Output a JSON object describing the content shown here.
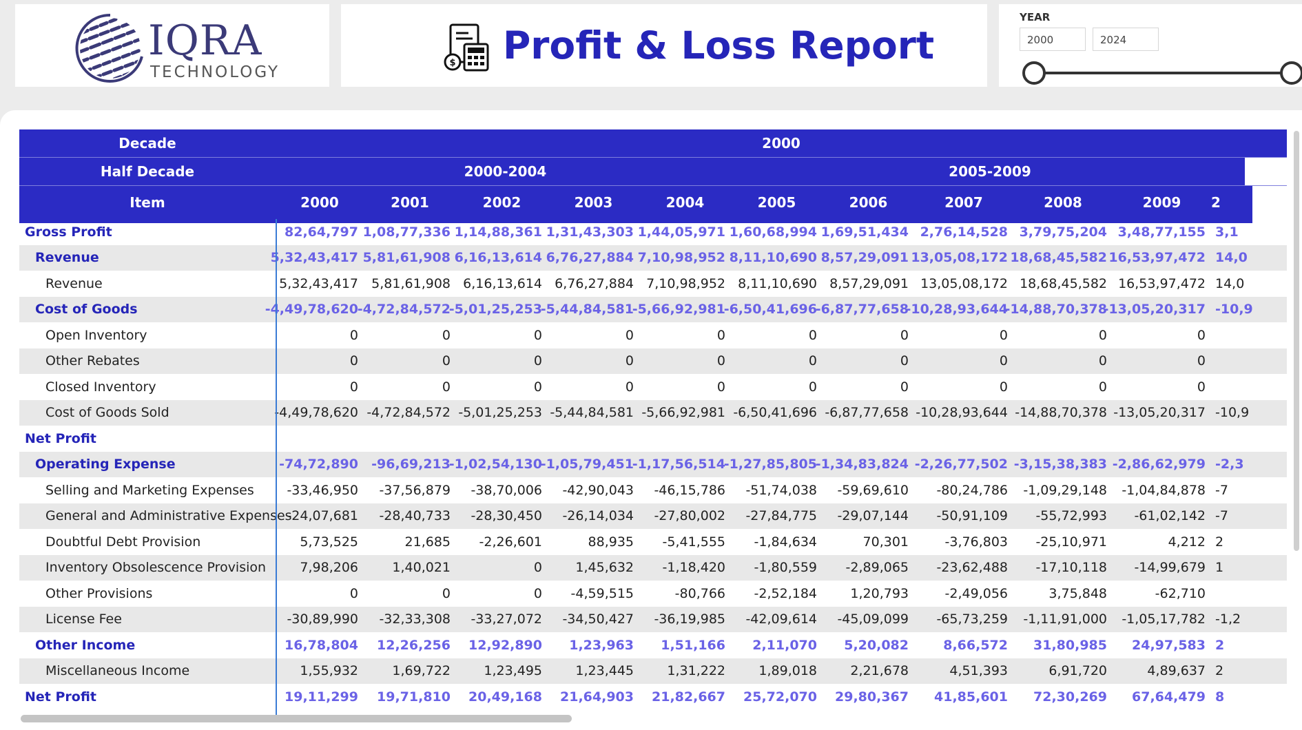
{
  "logo": {
    "name": "IQRA",
    "subtitle": "TECHNOLOGY"
  },
  "report": {
    "title": "Profit & Loss Report"
  },
  "slicer": {
    "label": "YEAR",
    "start": "2000",
    "end": "2024"
  },
  "matrix": {
    "row_headers": {
      "decade": "Decade",
      "half_decade": "Half Decade",
      "item": "Item"
    },
    "decade_value": "2000",
    "half_decades": [
      "2000-2004",
      "2005-2009"
    ],
    "years": [
      "2000",
      "2001",
      "2002",
      "2003",
      "2004",
      "2005",
      "2006",
      "2007",
      "2008",
      "2009",
      "2"
    ],
    "rows": [
      {
        "label": "Gross Profit",
        "level": 0,
        "values": [
          "82,64,797",
          "1,08,77,336",
          "1,14,88,361",
          "1,31,43,303",
          "1,44,05,971",
          "1,60,68,994",
          "1,69,51,434",
          "2,76,14,528",
          "3,79,75,204",
          "3,48,77,155",
          "3,1"
        ]
      },
      {
        "label": "Revenue",
        "level": 1,
        "values": [
          "5,32,43,417",
          "5,81,61,908",
          "6,16,13,614",
          "6,76,27,884",
          "7,10,98,952",
          "8,11,10,690",
          "8,57,29,091",
          "13,05,08,172",
          "18,68,45,582",
          "16,53,97,472",
          "14,0"
        ]
      },
      {
        "label": "Revenue",
        "level": 2,
        "values": [
          "5,32,43,417",
          "5,81,61,908",
          "6,16,13,614",
          "6,76,27,884",
          "7,10,98,952",
          "8,11,10,690",
          "8,57,29,091",
          "13,05,08,172",
          "18,68,45,582",
          "16,53,97,472",
          "14,0"
        ]
      },
      {
        "label": "Cost of Goods",
        "level": 1,
        "values": [
          "-4,49,78,620",
          "-4,72,84,572",
          "-5,01,25,253",
          "-5,44,84,581",
          "-5,66,92,981",
          "-6,50,41,696",
          "-6,87,77,658",
          "-10,28,93,644",
          "-14,88,70,378",
          "-13,05,20,317",
          "-10,9"
        ]
      },
      {
        "label": "Open Inventory",
        "level": 2,
        "values": [
          "0",
          "0",
          "0",
          "0",
          "0",
          "0",
          "0",
          "0",
          "0",
          "0",
          ""
        ]
      },
      {
        "label": "Other Rebates",
        "level": 2,
        "values": [
          "0",
          "0",
          "0",
          "0",
          "0",
          "0",
          "0",
          "0",
          "0",
          "0",
          ""
        ]
      },
      {
        "label": "Closed Inventory",
        "level": 2,
        "values": [
          "0",
          "0",
          "0",
          "0",
          "0",
          "0",
          "0",
          "0",
          "0",
          "0",
          ""
        ]
      },
      {
        "label": "Cost of Goods Sold",
        "level": 2,
        "values": [
          "-4,49,78,620",
          "-4,72,84,572",
          "-5,01,25,253",
          "-5,44,84,581",
          "-5,66,92,981",
          "-6,50,41,696",
          "-6,87,77,658",
          "-10,28,93,644",
          "-14,88,70,378",
          "-13,05,20,317",
          "-10,9"
        ]
      },
      {
        "label": "Net Profit",
        "level": 0,
        "values": [
          "",
          "",
          "",
          "",
          "",
          "",
          "",
          "",
          "",
          "",
          ""
        ]
      },
      {
        "label": "Operating Expense",
        "level": 1,
        "values": [
          "-74,72,890",
          "-96,69,213",
          "-1,02,54,130",
          "-1,05,79,451",
          "-1,17,56,514",
          "-1,27,85,805",
          "-1,34,83,824",
          "-2,26,77,502",
          "-3,15,38,383",
          "-2,86,62,979",
          "-2,3"
        ]
      },
      {
        "label": "Selling and Marketing Expenses",
        "level": 2,
        "values": [
          "-33,46,950",
          "-37,56,879",
          "-38,70,006",
          "-42,90,043",
          "-46,15,786",
          "-51,74,038",
          "-59,69,610",
          "-80,24,786",
          "-1,09,29,148",
          "-1,04,84,878",
          "-7"
        ]
      },
      {
        "label": "General and Administrative Expenses",
        "level": 2,
        "values": [
          "-24,07,681",
          "-28,40,733",
          "-28,30,450",
          "-26,14,034",
          "-27,80,002",
          "-27,84,775",
          "-29,07,144",
          "-50,91,109",
          "-55,72,993",
          "-61,02,142",
          "-7"
        ]
      },
      {
        "label": "Doubtful Debt Provision",
        "level": 2,
        "values": [
          "5,73,525",
          "21,685",
          "-2,26,601",
          "88,935",
          "-5,41,555",
          "-1,84,634",
          "70,301",
          "-3,76,803",
          "-25,10,971",
          "4,212",
          "2"
        ]
      },
      {
        "label": "Inventory Obsolescence Provision",
        "level": 2,
        "values": [
          "7,98,206",
          "1,40,021",
          "0",
          "1,45,632",
          "-1,18,420",
          "-1,80,559",
          "-2,89,065",
          "-23,62,488",
          "-17,10,118",
          "-14,99,679",
          "1"
        ]
      },
      {
        "label": "Other Provisions",
        "level": 2,
        "values": [
          "0",
          "0",
          "0",
          "-4,59,515",
          "-80,766",
          "-2,52,184",
          "1,20,793",
          "-2,49,056",
          "3,75,848",
          "-62,710",
          ""
        ]
      },
      {
        "label": "License Fee",
        "level": 2,
        "values": [
          "-30,89,990",
          "-32,33,308",
          "-33,27,072",
          "-34,50,427",
          "-36,19,985",
          "-42,09,614",
          "-45,09,099",
          "-65,73,259",
          "-1,11,91,000",
          "-1,05,17,782",
          "-1,2"
        ]
      },
      {
        "label": "Other Income",
        "level": 1,
        "values": [
          "16,78,804",
          "12,26,256",
          "12,92,890",
          "1,23,963",
          "1,51,166",
          "2,11,070",
          "5,20,082",
          "8,66,572",
          "31,80,985",
          "24,97,583",
          "2"
        ]
      },
      {
        "label": "Miscellaneous Income",
        "level": 2,
        "values": [
          "1,55,932",
          "1,69,722",
          "1,23,495",
          "1,23,445",
          "1,31,222",
          "1,89,018",
          "2,21,678",
          "4,51,393",
          "6,91,720",
          "4,89,637",
          "2"
        ]
      },
      {
        "label": "Net Profit",
        "level": 0,
        "values": [
          "19,11,299",
          "19,71,810",
          "20,49,168",
          "21,64,903",
          "21,82,667",
          "25,72,070",
          "29,80,367",
          "41,85,601",
          "72,30,269",
          "67,64,479",
          "8"
        ]
      }
    ]
  }
}
